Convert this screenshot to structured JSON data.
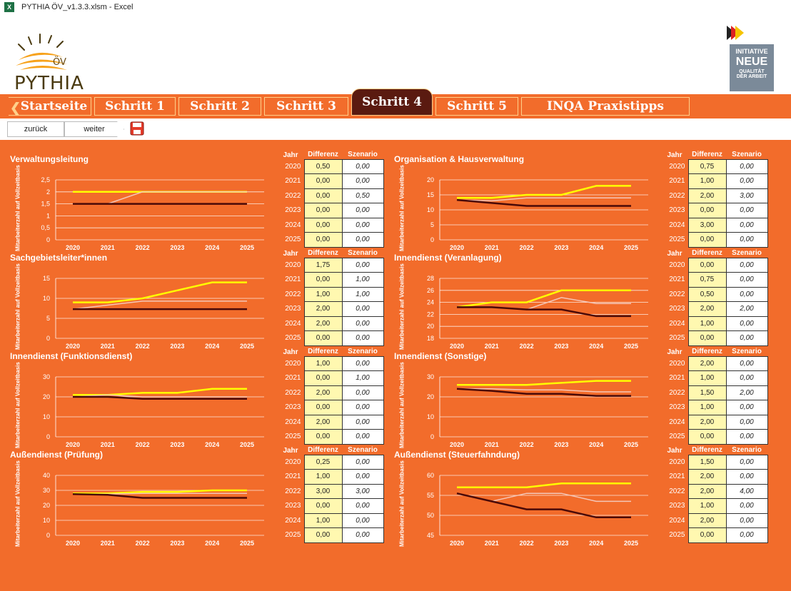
{
  "window": {
    "title": "PYTHIA ÖV_v1.3.3.xlsm - Excel",
    "app_icon": "excel-icon"
  },
  "logo": {
    "text": "PYTHIA",
    "badge": "ÖV"
  },
  "inqa": {
    "line1": "INITIATIVE",
    "line2": "NEUE",
    "line3": "QUALITÄT",
    "line4": "DER ARBEIT"
  },
  "tabs": [
    {
      "label": "Startseite"
    },
    {
      "label": "Schritt 1"
    },
    {
      "label": "Schritt 2"
    },
    {
      "label": "Schritt 3"
    },
    {
      "label": "Schritt 4"
    },
    {
      "label": "Schritt 5"
    },
    {
      "label": "INQA Praxistipps"
    }
  ],
  "active_tab": "Schritt 4",
  "nav": {
    "back": "zurück",
    "next": "weiter",
    "save_icon": "save-icon"
  },
  "colors": {
    "background": "#f26c2b",
    "line_yellow": "#ffff00",
    "line_light": "#f4c6b8",
    "line_dark": "#4a0a08",
    "active_tab": "#5a1a10"
  },
  "ylabel": "Mitarbeiterzahl auf Vollzeitbasis",
  "table_headers": {
    "year": "Jahr",
    "diff": "Differenz",
    "scen": "Szenario"
  },
  "panels": [
    {
      "title": "Verwaltungsleitung",
      "rows": [
        [
          "2020",
          "0,50",
          "0,00"
        ],
        [
          "2021",
          "0,00",
          "0,00"
        ],
        [
          "2022",
          "0,00",
          "0,50"
        ],
        [
          "2023",
          "0,00",
          "0,00"
        ],
        [
          "2024",
          "0,00",
          "0,00"
        ],
        [
          "2025",
          "0,00",
          "0,00"
        ]
      ]
    },
    {
      "title": "Organisation & Hausverwaltung",
      "rows": [
        [
          "2020",
          "0,75",
          "0,00"
        ],
        [
          "2021",
          "1,00",
          "0,00"
        ],
        [
          "2022",
          "2,00",
          "3,00"
        ],
        [
          "2023",
          "0,00",
          "0,00"
        ],
        [
          "2024",
          "3,00",
          "0,00"
        ],
        [
          "2025",
          "0,00",
          "0,00"
        ]
      ]
    },
    {
      "title": "Sachgebietsleiter*innen",
      "rows": [
        [
          "2020",
          "1,75",
          "0,00"
        ],
        [
          "2021",
          "0,00",
          "1,00"
        ],
        [
          "2022",
          "1,00",
          "1,00"
        ],
        [
          "2023",
          "2,00",
          "0,00"
        ],
        [
          "2024",
          "2,00",
          "0,00"
        ],
        [
          "2025",
          "0,00",
          "0,00"
        ]
      ]
    },
    {
      "title": "Innendienst (Veranlagung)",
      "rows": [
        [
          "2020",
          "0,00",
          "0,00"
        ],
        [
          "2021",
          "0,75",
          "0,00"
        ],
        [
          "2022",
          "0,50",
          "0,00"
        ],
        [
          "2023",
          "2,00",
          "2,00"
        ],
        [
          "2024",
          "1,00",
          "0,00"
        ],
        [
          "2025",
          "0,00",
          "0,00"
        ]
      ]
    },
    {
      "title": "Innendienst (Funktionsdienst)",
      "rows": [
        [
          "2020",
          "1,00",
          "0,00"
        ],
        [
          "2021",
          "0,00",
          "1,00"
        ],
        [
          "2022",
          "2,00",
          "0,00"
        ],
        [
          "2023",
          "0,00",
          "0,00"
        ],
        [
          "2024",
          "2,00",
          "0,00"
        ],
        [
          "2025",
          "0,00",
          "0,00"
        ]
      ]
    },
    {
      "title": "Innendienst (Sonstige)",
      "rows": [
        [
          "2020",
          "2,00",
          "0,00"
        ],
        [
          "2021",
          "1,00",
          "0,00"
        ],
        [
          "2022",
          "1,50",
          "2,00"
        ],
        [
          "2023",
          "1,00",
          "0,00"
        ],
        [
          "2024",
          "2,00",
          "0,00"
        ],
        [
          "2025",
          "0,00",
          "0,00"
        ]
      ]
    },
    {
      "title": "Außendienst (Prüfung)",
      "rows": [
        [
          "2020",
          "0,25",
          "0,00"
        ],
        [
          "2021",
          "1,00",
          "0,00"
        ],
        [
          "2022",
          "3,00",
          "3,00"
        ],
        [
          "2023",
          "0,00",
          "0,00"
        ],
        [
          "2024",
          "1,00",
          "0,00"
        ],
        [
          "2025",
          "0,00",
          "0,00"
        ]
      ]
    },
    {
      "title": "Außendienst (Steuerfahndung)",
      "rows": [
        [
          "2020",
          "1,50",
          "0,00"
        ],
        [
          "2021",
          "2,00",
          "0,00"
        ],
        [
          "2022",
          "2,00",
          "4,00"
        ],
        [
          "2023",
          "1,00",
          "0,00"
        ],
        [
          "2024",
          "2,00",
          "0,00"
        ],
        [
          "2025",
          "0,00",
          "0,00"
        ]
      ]
    }
  ],
  "chart_data": [
    {
      "type": "line",
      "categories": [
        "2020",
        "2021",
        "2022",
        "2023",
        "2024",
        "2025"
      ],
      "ylim": [
        0,
        2.5
      ],
      "yticks": [
        "0",
        "0,5",
        "1",
        "1,5",
        "2",
        "2,5"
      ],
      "yticks_num": [
        0,
        0.5,
        1,
        1.5,
        2,
        2.5
      ],
      "series": [
        {
          "values": [
            2,
            2,
            2,
            2,
            2,
            2
          ],
          "color": "#ffff00"
        },
        {
          "values": [
            1.5,
            1.5,
            2,
            2,
            2,
            2
          ],
          "color": "#f4c6b8"
        },
        {
          "values": [
            1.5,
            1.5,
            1.5,
            1.5,
            1.5,
            1.5
          ],
          "color": "#4a0a08"
        }
      ]
    },
    {
      "type": "line",
      "categories": [
        "2020",
        "2021",
        "2022",
        "2023",
        "2024",
        "2025"
      ],
      "ylim": [
        0,
        20
      ],
      "yticks": [
        "0",
        "5",
        "10",
        "15",
        "20"
      ],
      "yticks_num": [
        0,
        5,
        10,
        15,
        20
      ],
      "series": [
        {
          "values": [
            14,
            14,
            15,
            15,
            18,
            18
          ],
          "color": "#ffff00"
        },
        {
          "values": [
            13.3,
            13,
            14,
            14,
            14,
            14
          ],
          "color": "#f4c6b8"
        },
        {
          "values": [
            13.3,
            12.3,
            11.3,
            11.3,
            11.3,
            11.3
          ],
          "color": "#4a0a08"
        }
      ]
    },
    {
      "type": "line",
      "categories": [
        "2020",
        "2021",
        "2022",
        "2023",
        "2024",
        "2025"
      ],
      "ylim": [
        0,
        15
      ],
      "yticks": [
        "0",
        "5",
        "10",
        "15"
      ],
      "yticks_num": [
        0,
        5,
        10,
        15
      ],
      "series": [
        {
          "values": [
            9,
            9,
            10,
            12,
            14,
            14
          ],
          "color": "#ffff00"
        },
        {
          "values": [
            7.3,
            8.3,
            9.3,
            9.3,
            9.3,
            9.3
          ],
          "color": "#f4c6b8"
        },
        {
          "values": [
            7.3,
            7.3,
            7.3,
            7.3,
            7.3,
            7.3
          ],
          "color": "#4a0a08"
        }
      ]
    },
    {
      "type": "line",
      "categories": [
        "2020",
        "2021",
        "2022",
        "2023",
        "2024",
        "2025"
      ],
      "ylim": [
        18,
        28
      ],
      "yticks": [
        "18",
        "20",
        "22",
        "24",
        "26",
        "28"
      ],
      "yticks_num": [
        18,
        20,
        22,
        24,
        26,
        28
      ],
      "series": [
        {
          "values": [
            23.2,
            24,
            24,
            26,
            26,
            26
          ],
          "color": "#ffff00"
        },
        {
          "values": [
            23.2,
            23.2,
            22.8,
            24.8,
            23.8,
            23.8
          ],
          "color": "#f4c6b8"
        },
        {
          "values": [
            23.2,
            23.2,
            22.8,
            22.8,
            21.7,
            21.7
          ],
          "color": "#4a0a08"
        }
      ]
    },
    {
      "type": "line",
      "categories": [
        "2020",
        "2021",
        "2022",
        "2023",
        "2024",
        "2025"
      ],
      "ylim": [
        0,
        30
      ],
      "yticks": [
        "0",
        "10",
        "20",
        "30"
      ],
      "yticks_num": [
        0,
        10,
        20,
        30
      ],
      "series": [
        {
          "values": [
            21,
            21,
            22,
            22,
            24,
            24
          ],
          "color": "#ffff00"
        },
        {
          "values": [
            20,
            21,
            20,
            20,
            20,
            20
          ],
          "color": "#f4c6b8"
        },
        {
          "values": [
            20,
            20,
            19,
            19,
            19,
            19
          ],
          "color": "#4a0a08"
        }
      ]
    },
    {
      "type": "line",
      "categories": [
        "2020",
        "2021",
        "2022",
        "2023",
        "2024",
        "2025"
      ],
      "ylim": [
        0,
        30
      ],
      "yticks": [
        "0",
        "10",
        "20",
        "30"
      ],
      "yticks_num": [
        0,
        10,
        20,
        30
      ],
      "series": [
        {
          "values": [
            26,
            26,
            26,
            27,
            28,
            28
          ],
          "color": "#ffff00"
        },
        {
          "values": [
            24,
            24,
            23.5,
            23.5,
            22.5,
            22.5
          ],
          "color": "#f4c6b8"
        },
        {
          "values": [
            24,
            23,
            21.5,
            21.5,
            20.5,
            20.5
          ],
          "color": "#4a0a08"
        }
      ]
    },
    {
      "type": "line",
      "categories": [
        "2020",
        "2021",
        "2022",
        "2023",
        "2024",
        "2025"
      ],
      "ylim": [
        0,
        40
      ],
      "yticks": [
        "0",
        "10",
        "20",
        "30",
        "40"
      ],
      "yticks_num": [
        0,
        10,
        20,
        30,
        40
      ],
      "series": [
        {
          "values": [
            28,
            28,
            29,
            29,
            30,
            30
          ],
          "color": "#ffff00"
        },
        {
          "values": [
            27.5,
            27.5,
            28,
            28,
            28,
            28
          ],
          "color": "#f4c6b8"
        },
        {
          "values": [
            27.5,
            27,
            25,
            25,
            25,
            25
          ],
          "color": "#4a0a08"
        }
      ]
    },
    {
      "type": "line",
      "categories": [
        "2020",
        "2021",
        "2022",
        "2023",
        "2024",
        "2025"
      ],
      "ylim": [
        45,
        60
      ],
      "yticks": [
        "45",
        "50",
        "55",
        "60"
      ],
      "yticks_num": [
        45,
        50,
        55,
        60
      ],
      "series": [
        {
          "values": [
            57,
            57,
            57,
            58,
            58,
            58
          ],
          "color": "#ffff00"
        },
        {
          "values": [
            55.5,
            53.5,
            55.5,
            55.5,
            53.5,
            53.5
          ],
          "color": "#f4c6b8"
        },
        {
          "values": [
            55.5,
            53.5,
            51.5,
            51.5,
            49.5,
            49.5
          ],
          "color": "#4a0a08"
        }
      ]
    }
  ]
}
